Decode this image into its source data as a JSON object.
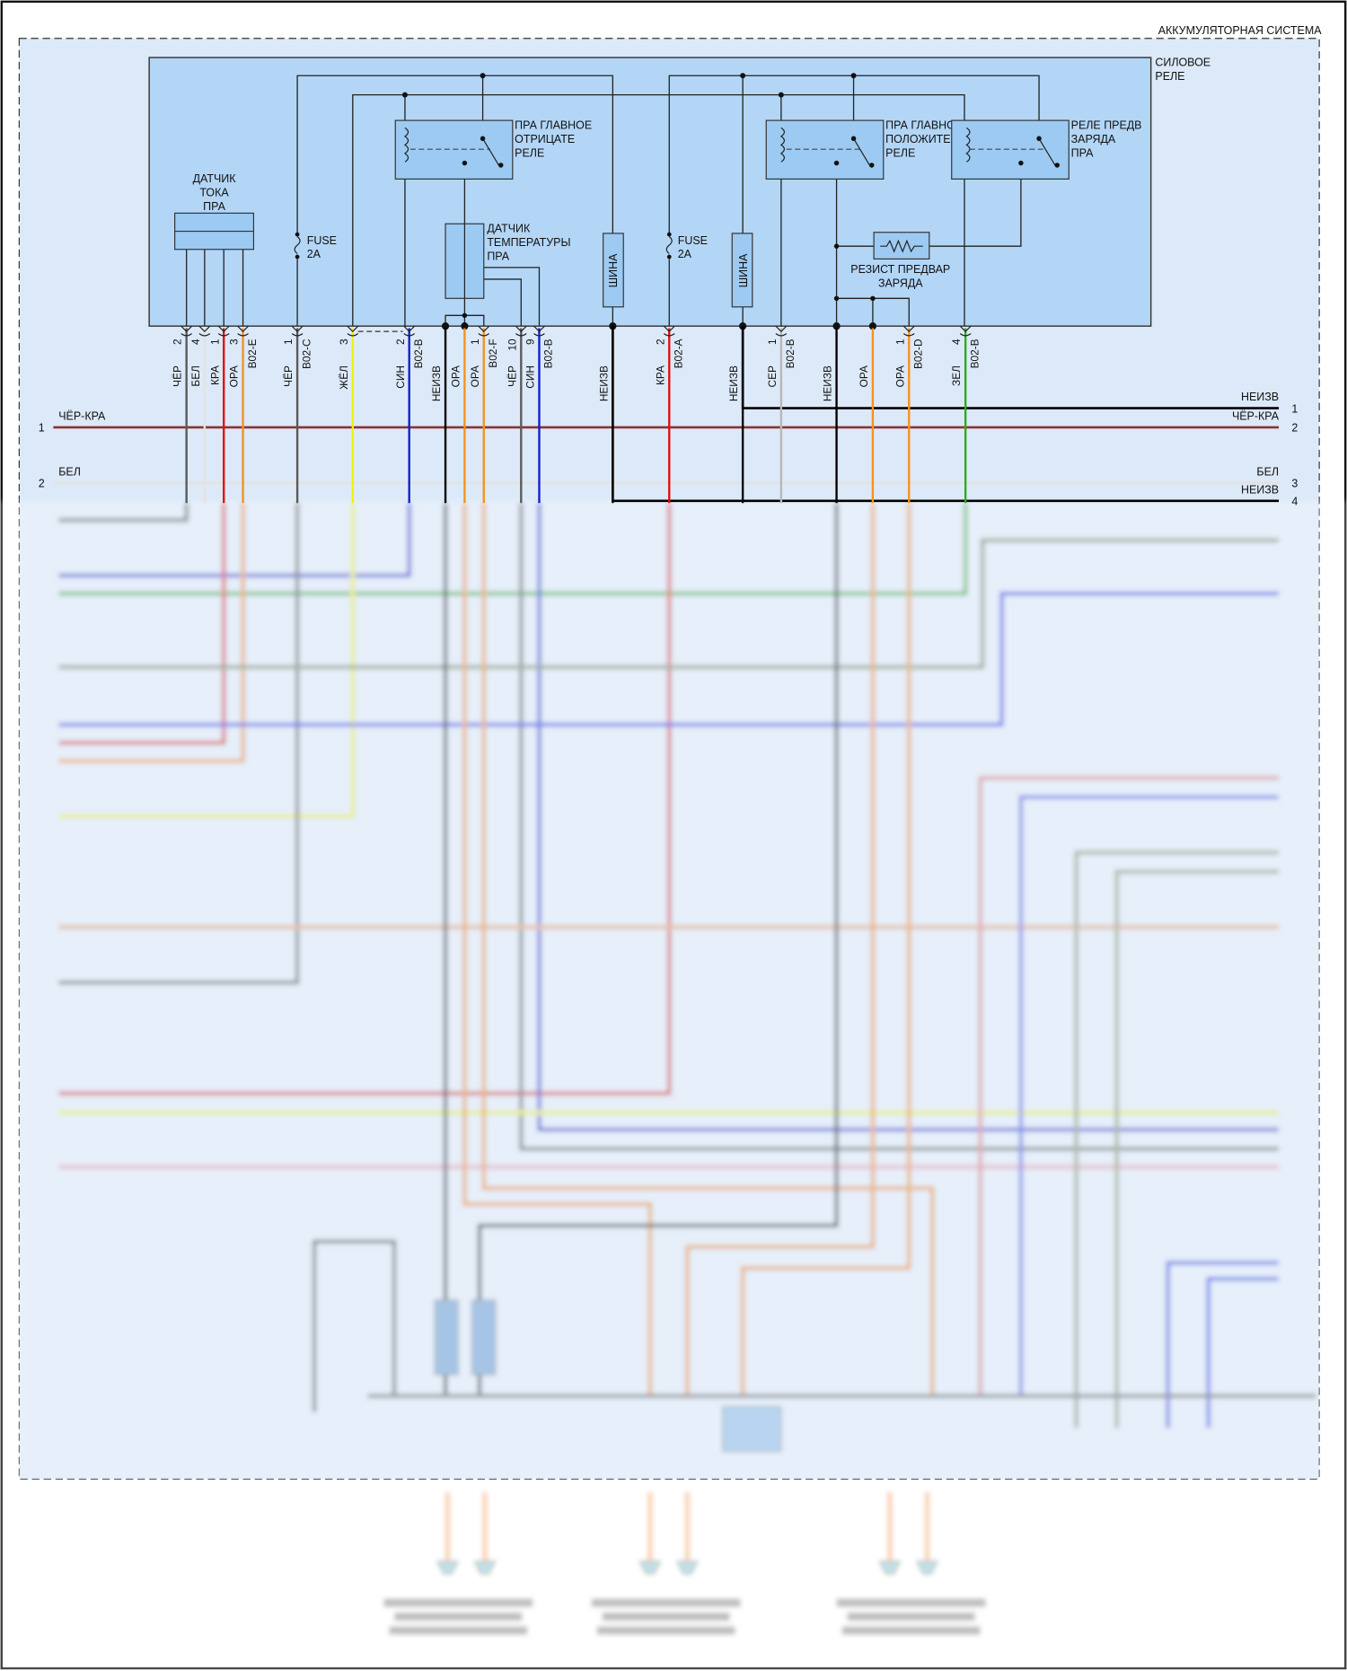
{
  "system_title": "АККУМУЛЯТОРНАЯ СИСТЕМА",
  "power_relay": {
    "label_line1": "СИЛОВОЕ",
    "label_line2": "РЕЛЕ"
  },
  "components": {
    "current_sensor": [
      "ДАТЧИК",
      "ТОКА",
      "ПРА"
    ],
    "temp_sensor": [
      "ДАТЧИК",
      "ТЕМПЕРАТУРЫ",
      "ПРА"
    ],
    "main_negative_relay": [
      "ПРА ГЛАВНОЕ",
      "ОТРИЦАТЕ",
      "РЕЛЕ"
    ],
    "main_positive_relay": [
      "ПРА ГЛАВНОЕ",
      "ПОЛОЖИТЕ",
      "РЕЛЕ"
    ],
    "precharge_relay": [
      "РЕЛЕ ПРЕДВ",
      "ЗАРЯДА",
      "ПРА"
    ],
    "precharge_resistor": [
      "РЕЗИСТ ПРЕДВАР",
      "ЗАРЯДА"
    ],
    "fuse_1": [
      "FUSE",
      "2A"
    ],
    "fuse_2": [
      "FUSE",
      "2A"
    ],
    "busbar_1": "ШИНА",
    "busbar_2": "ШИНА"
  },
  "wire_colors": {
    "ЧЁР": "#5a5a5a",
    "БЕЛ": "#e6e2dc",
    "КРА": "#e01010",
    "ОРА": "#f5921e",
    "ЖЁЛ": "#f2f20a",
    "СИН": "#1020c8",
    "НЕИЗВ": "#000000",
    "СЕР": "#b8b8b8",
    "ЗЕЛ": "#2faa1e",
    "ЧЁР-КРА": "#8a3434"
  },
  "pins": [
    {
      "num": "2",
      "wire": "ЧЁР",
      "connector": ""
    },
    {
      "num": "4",
      "wire": "БЕЛ",
      "connector": ""
    },
    {
      "num": "1",
      "wire": "КРА",
      "connector": ""
    },
    {
      "num": "3",
      "wire": "ОРА",
      "connector": "B02-E"
    },
    {
      "num": "1",
      "wire": "ЧЁР",
      "connector": "B02-C"
    },
    {
      "num": "3",
      "wire": "ЖЁЛ",
      "connector": ""
    },
    {
      "num": "2",
      "wire": "СИН",
      "connector": "B02-B"
    },
    {
      "num": "",
      "wire": "НЕИЗВ",
      "connector": ""
    },
    {
      "num": "",
      "wire": "ОРА",
      "connector": ""
    },
    {
      "num": "1",
      "wire": "ОРА",
      "connector": "B02-F"
    },
    {
      "num": "10",
      "wire": "ЧЁР",
      "connector": ""
    },
    {
      "num": "9",
      "wire": "СИН",
      "connector": "B02-B"
    },
    {
      "num": "",
      "wire": "НЕИЗВ",
      "connector": ""
    },
    {
      "num": "2",
      "wire": "КРА",
      "connector": "B02-A"
    },
    {
      "num": "",
      "wire": "НЕИЗВ",
      "connector": ""
    },
    {
      "num": "1",
      "wire": "СЕР",
      "connector": "B02-B"
    },
    {
      "num": "",
      "wire": "НЕИЗВ",
      "connector": ""
    },
    {
      "num": "",
      "wire": "ОРА",
      "connector": ""
    },
    {
      "num": "1",
      "wire": "ОРА",
      "connector": "B02-D"
    },
    {
      "num": "4",
      "wire": "ЗЕЛ",
      "connector": "B02-B"
    }
  ],
  "left_lines": [
    {
      "num": "1",
      "wire": "ЧЁР-КРА"
    },
    {
      "num": "2",
      "wire": "БЕЛ"
    }
  ],
  "right_lines": [
    {
      "num": "1",
      "wire": "НЕИЗВ"
    },
    {
      "num": "2",
      "wire": "ЧЁР-КРА"
    },
    {
      "num": "3",
      "wire": "БЕЛ"
    },
    {
      "num": "4",
      "wire": "НЕИЗВ"
    }
  ]
}
